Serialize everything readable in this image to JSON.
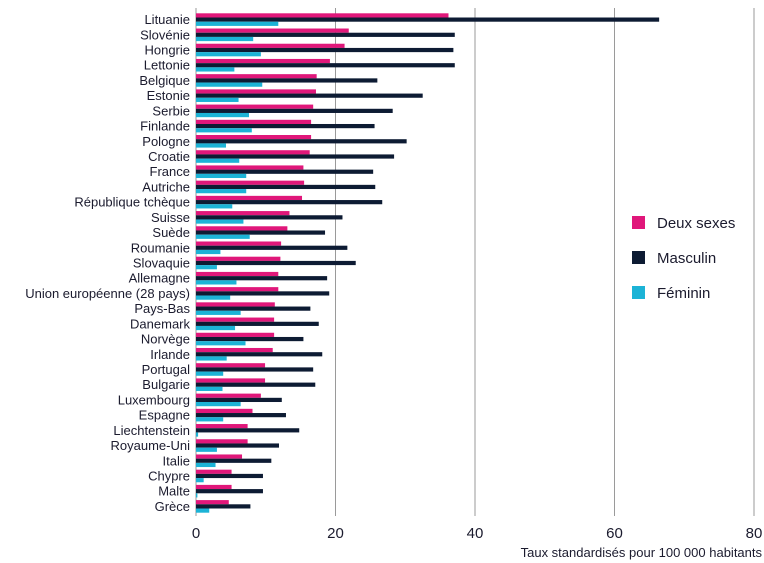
{
  "chart_data": {
    "type": "bar",
    "orientation": "horizontal",
    "title": "",
    "xlabel": "Taux standardisés pour 100 000 habitants",
    "ylabel": "",
    "xlim": [
      0,
      80
    ],
    "xticks": [
      0,
      20,
      40,
      60,
      80
    ],
    "grid": "vertical",
    "legend_position": "right",
    "categories": [
      "Lituanie",
      "Slovénie",
      "Hongrie",
      "Lettonie",
      "Belgique",
      "Estonie",
      "Serbie",
      "Finlande",
      "Pologne",
      "Croatie",
      "France",
      "Autriche",
      "République tchèque",
      "Suisse",
      "Suède",
      "Roumanie",
      "Slovaquie",
      "Allemagne",
      "Union européenne (28 pays)",
      "Pays-Bas",
      "Danemark",
      "Norvège",
      "Irlande",
      "Portugal",
      "Bulgarie",
      "Luxembourg",
      "Espagne",
      "Liechtenstein",
      "Royaume-Uni",
      "Italie",
      "Chypre",
      "Malte",
      "Grèce"
    ],
    "series": [
      {
        "name": "Deux sexes",
        "color": "#e0177a",
        "values": [
          36.2,
          21.9,
          21.3,
          19.2,
          17.3,
          17.2,
          16.8,
          16.5,
          16.5,
          16.3,
          15.4,
          15.5,
          15.2,
          13.4,
          13.1,
          12.2,
          12.1,
          11.8,
          11.8,
          11.3,
          11.2,
          11.2,
          11.0,
          9.9,
          9.9,
          9.3,
          8.1,
          7.4,
          7.4,
          6.6,
          5.1,
          5.1,
          4.7
        ]
      },
      {
        "name": "Masculin",
        "color": "#0d1b33",
        "values": [
          66.4,
          37.1,
          36.9,
          37.1,
          26.0,
          32.5,
          28.2,
          25.6,
          30.2,
          28.4,
          25.4,
          25.7,
          26.7,
          21.0,
          18.5,
          21.7,
          22.9,
          18.8,
          19.1,
          16.4,
          17.6,
          15.4,
          18.1,
          16.8,
          17.1,
          12.3,
          12.9,
          14.8,
          11.9,
          10.8,
          9.6,
          9.6,
          7.8
        ]
      },
      {
        "name": "Féminin",
        "color": "#1cb3d6",
        "values": [
          11.8,
          8.2,
          9.3,
          5.5,
          9.5,
          6.1,
          7.6,
          8.0,
          4.3,
          6.2,
          7.2,
          7.2,
          5.2,
          6.8,
          7.7,
          3.5,
          3.0,
          5.8,
          4.9,
          6.4,
          5.6,
          7.1,
          4.4,
          3.9,
          3.8,
          6.4,
          3.9,
          0.3,
          3.0,
          2.8,
          1.1,
          0.2,
          1.9
        ]
      }
    ]
  }
}
